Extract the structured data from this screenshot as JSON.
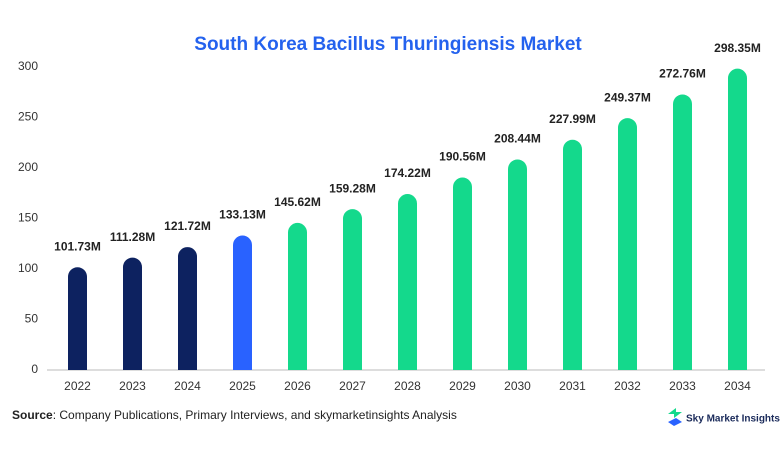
{
  "chart_data": {
    "type": "bar",
    "title": "South Korea Bacillus Thuringiensis Market",
    "categories": [
      "2022",
      "2023",
      "2024",
      "2025",
      "2026",
      "2027",
      "2028",
      "2029",
      "2030",
      "2031",
      "2032",
      "2033",
      "2034"
    ],
    "values": [
      101.73,
      111.28,
      121.72,
      133.13,
      145.62,
      159.28,
      174.22,
      190.56,
      208.44,
      227.99,
      249.37,
      272.76,
      298.35
    ],
    "value_labels": [
      "101.73M",
      "111.28M",
      "121.72M",
      "133.13M",
      "145.62M",
      "159.28M",
      "174.22M",
      "190.56M",
      "208.44M",
      "227.99M",
      "249.37M",
      "272.76M",
      "298.35M"
    ],
    "colors": [
      "#0d2260",
      "#0d2260",
      "#0d2260",
      "#2962ff",
      "#14d98c",
      "#14d98c",
      "#14d98c",
      "#14d98c",
      "#14d98c",
      "#14d98c",
      "#14d98c",
      "#14d98c",
      "#14d98c"
    ],
    "ylim": [
      0,
      300
    ],
    "yticks": [
      0,
      50,
      100,
      150,
      200,
      250,
      300
    ],
    "grid": false
  },
  "footer": {
    "source_label": "Source",
    "source_text": ": Company Publications, Primary Interviews, and skymarketinsights Analysis",
    "brand": "Sky Market Insights"
  }
}
